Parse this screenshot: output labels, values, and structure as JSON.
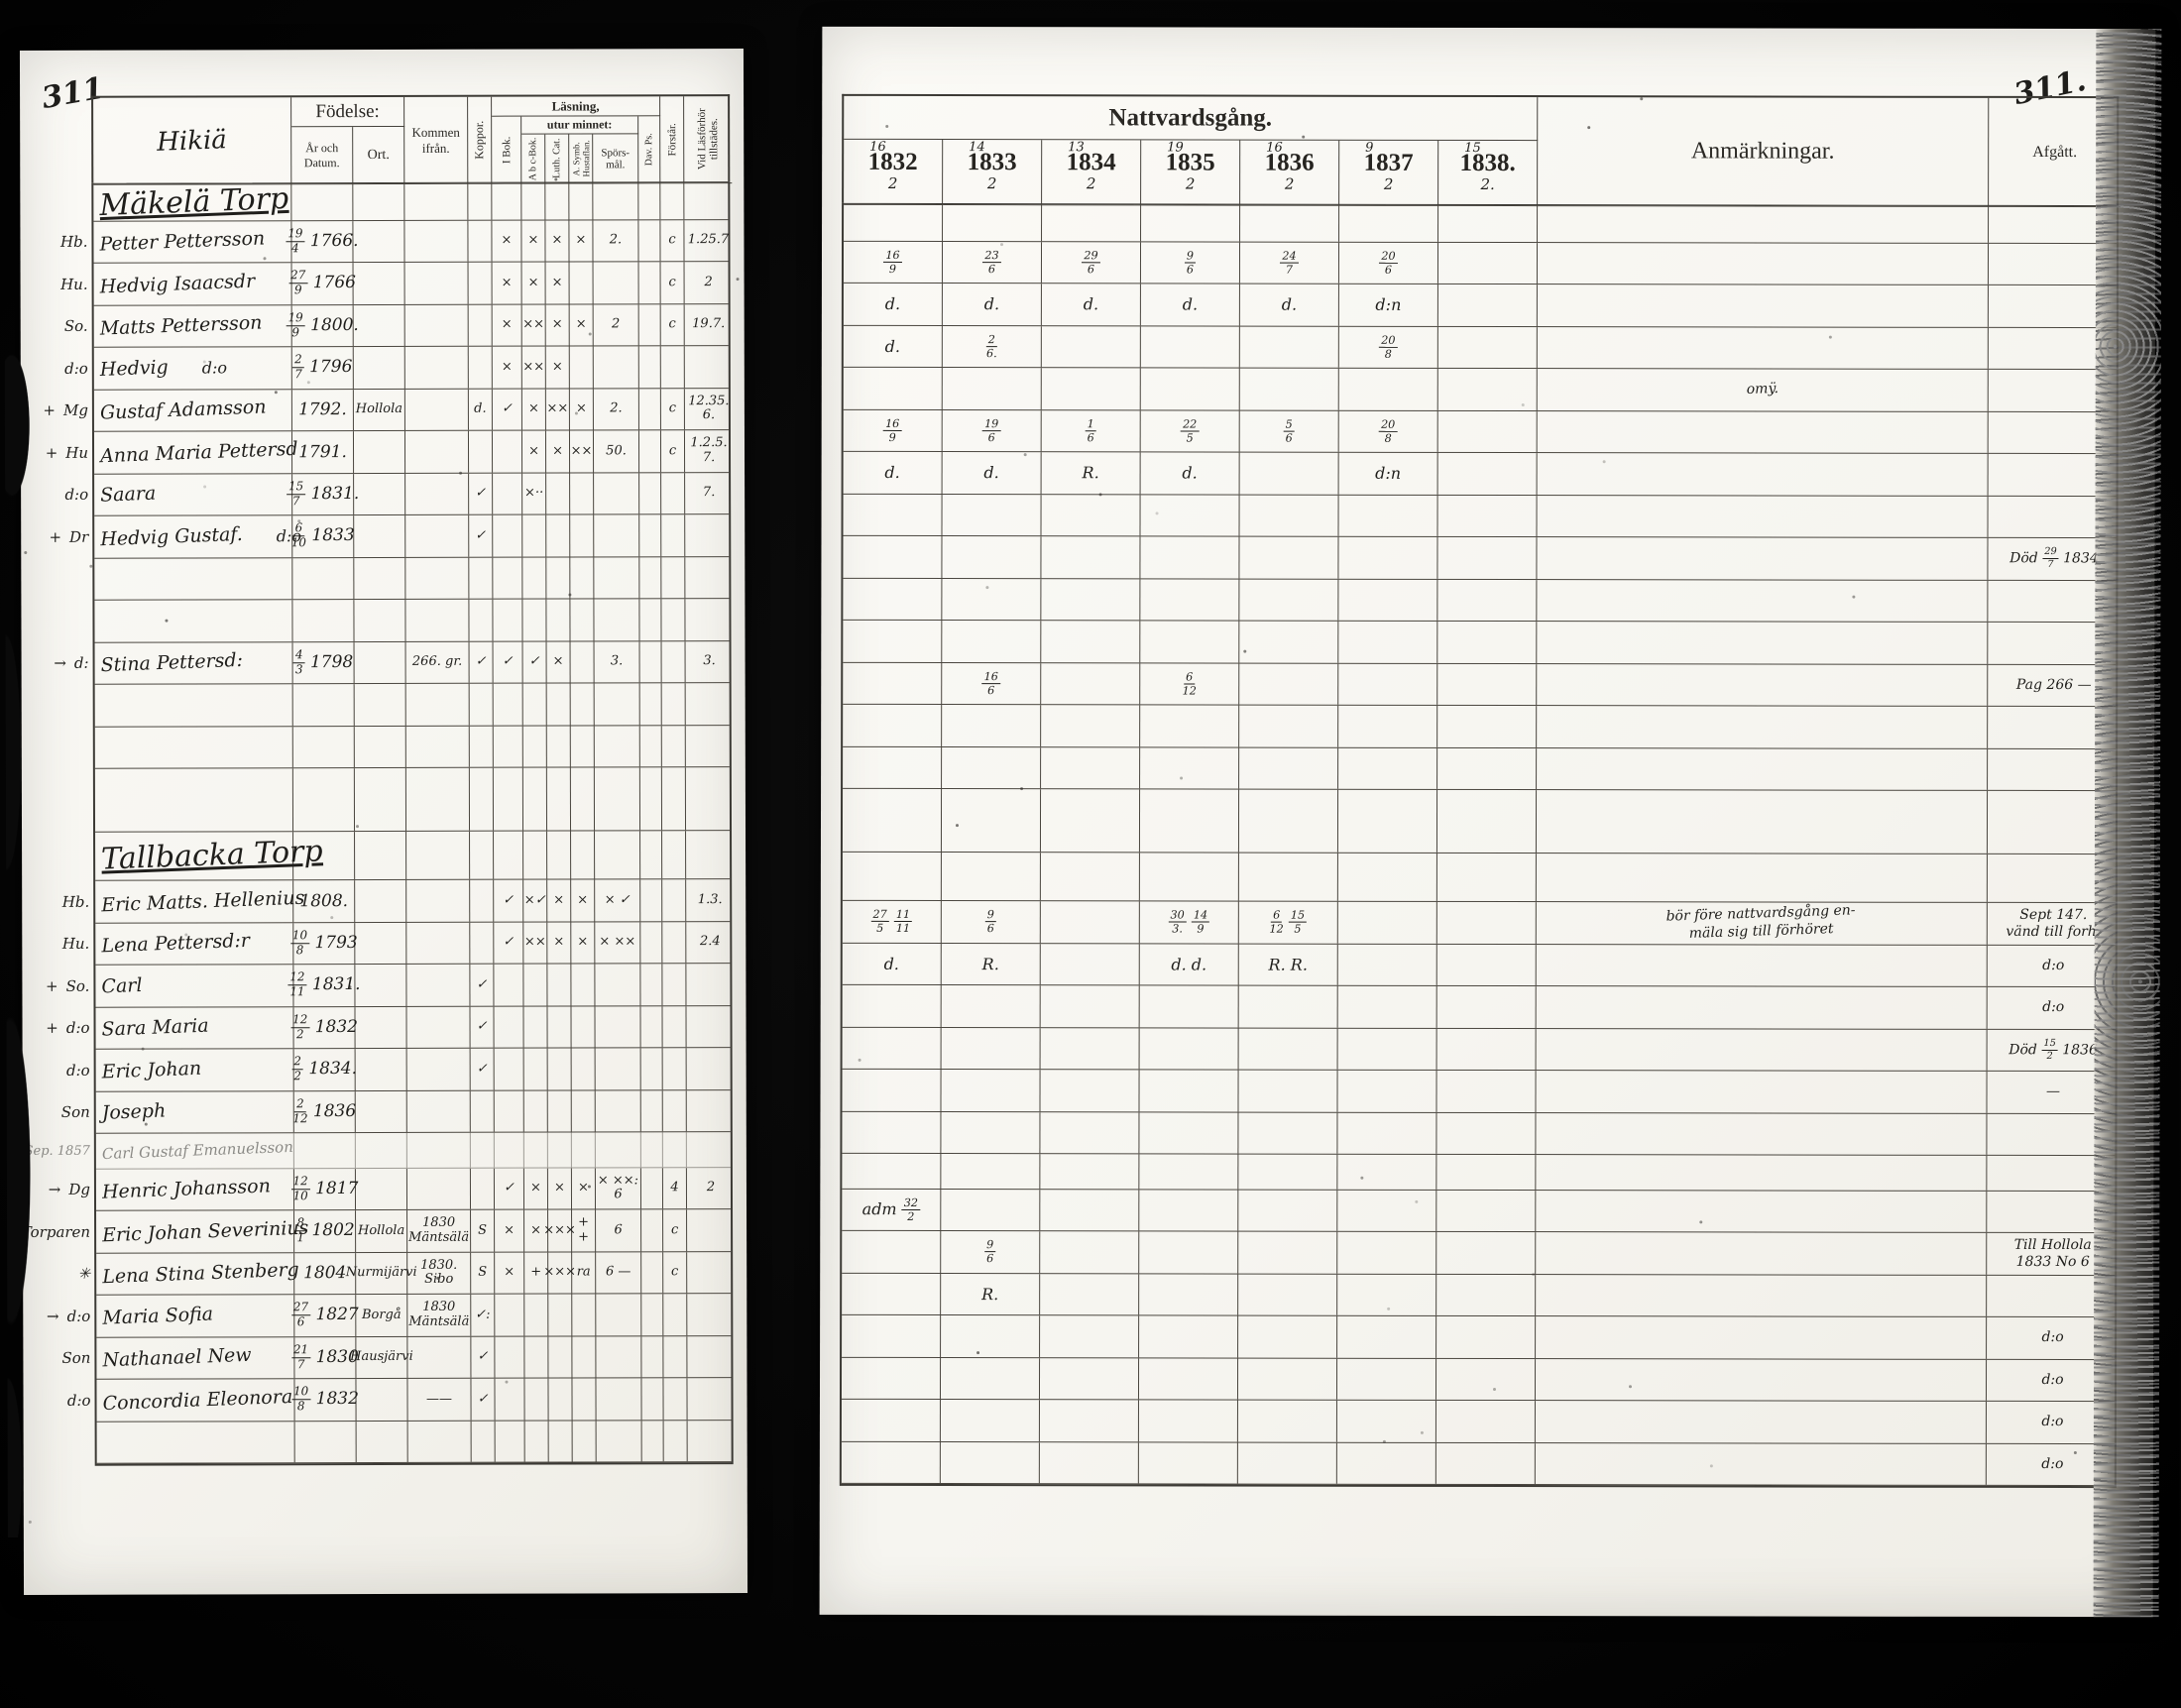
{
  "pages": {
    "left_page_number": "311",
    "right_page_number": "311."
  },
  "left_table": {
    "header": {
      "place_script": "Hikiä",
      "fodelse": "Födelse:",
      "ar_och_datum": "År och Datum.",
      "ort": "Ort.",
      "kommen_ifran": "Kommen ifrån.",
      "koppor": "Koppor.",
      "lasning": "Läsning,",
      "utur_minnet": "utur minnet:",
      "i_bok": "I Bok.",
      "abc_bok": "A b c-Bok.",
      "luth_cat": "Luth. Cat.",
      "symb_hustaflan": "A. Symb. Hustaflan.",
      "sporsmal": "Spörs-mål.",
      "dav_ps": "Dav. Ps.",
      "forstar": "Förstår.",
      "vid_lasforhor": "Vid Läsförhör tillstädes."
    },
    "rows": [
      {
        "type": "section",
        "name": "Mäkelä Torp"
      },
      {
        "ml": "Hb.",
        "name": "Petter Pettersson",
        "df": "19/4",
        "yr": "1766.",
        "ibok": "×",
        "abc": "×",
        "luth": "×",
        "symb": "×",
        "spors": "2.",
        "forstar": "c",
        "vid": "1.25.7"
      },
      {
        "ml": "Hu.",
        "name": "Hedvig Isaacsdr",
        "df": "27/9",
        "yr": "1766",
        "ibok": "×",
        "abc": "×",
        "luth": "×",
        "forstar": "c",
        "vid": "2"
      },
      {
        "ml": "So.",
        "name": "Matts Pettersson",
        "df": "19/9",
        "yr": "1800.",
        "ibok": "×",
        "abc": "××",
        "luth": "×",
        "symb": "×",
        "spors": "2",
        "forstar": "c",
        "vid": "19.7."
      },
      {
        "ml": "d:o",
        "name": "Hedvig",
        "ditto": "d:o",
        "df": "2/7",
        "yr": "1796",
        "ibok": "×",
        "abc": "××",
        "luth": "×"
      },
      {
        "m": "+",
        "ml": "Mg",
        "name": "Gustaf Adamsson",
        "yr": "1792.",
        "ort": "Hollola",
        "koppor": "d.",
        "ibok": "✓",
        "abc": "×",
        "luth": "××",
        "symb": "×",
        "spors": "2.",
        "forstar": "c",
        "vid": "12.35. 6."
      },
      {
        "m": "+",
        "ml": "Hu",
        "name": "Anna Maria Pettersd",
        "yr": "1791.",
        "abc": "×",
        "luth": "×",
        "symb": "××",
        "spors": "50.",
        "forstar": "c",
        "vid": "1.2.5. 7."
      },
      {
        "ml": "d:o",
        "name": "Saara",
        "df": "15/7",
        "yr": "1831.",
        "koppor": "✓",
        "abc": "×··",
        "vid": "7."
      },
      {
        "m": "+",
        "ml": "Dr",
        "name": "Hedvig Gustaf.",
        "ditto": "d:o",
        "df": "6/10",
        "yr": "1833",
        "koppor": "✓"
      },
      {
        "type": "blank"
      },
      {
        "type": "blank"
      },
      {
        "m": "→",
        "ml": "d:",
        "name": "Stina Pettersd:",
        "df": "4/3",
        "yr": "1798",
        "kommen": "266. gr.",
        "koppor": "✓",
        "ibok": "✓",
        "abc": "✓",
        "luth": "×",
        "spors": "3.",
        "vid": "3."
      },
      {
        "type": "blank"
      },
      {
        "type": "blank"
      },
      {
        "type": "blank"
      },
      {
        "type": "section",
        "name": "Tallbacka Torp"
      },
      {
        "ml": "Hb.",
        "name": "Eric Matts. Hellenius",
        "yr": "1808.",
        "ibok": "✓",
        "abc": "×✓",
        "luth": "×",
        "symb": "×",
        "spors": "× ✓",
        "vid": "1.3."
      },
      {
        "ml": "Hu.",
        "name": "Lena Pettersd:r",
        "df": "10/8",
        "yr": "1793",
        "ibok": "✓",
        "abc": "××",
        "luth": "×",
        "symb": "×",
        "spors": "× ××",
        "vid": "2.4"
      },
      {
        "m": "+",
        "ml": "So.",
        "name": "Carl",
        "df": "12/11",
        "yr": "1831.",
        "koppor": "✓"
      },
      {
        "m": "+",
        "ml": "d:o",
        "name": "Sara Maria",
        "df": "12/2",
        "yr": "1832",
        "koppor": "✓"
      },
      {
        "ml": "d:o",
        "name": "Eric Johan",
        "df": "2/2",
        "yr": "1834.",
        "koppor": "✓"
      },
      {
        "ml": "Son",
        "name": "Joseph",
        "df": "2/12",
        "yr": "1836"
      },
      {
        "type": "faint",
        "m": "Sep. 1857",
        "name": "Carl Gustaf Emanuelsson"
      },
      {
        "m": "→",
        "ml": "Dg",
        "name": "Henric Johansson",
        "df": "12/10",
        "yr": "1817",
        "ibok": "✓",
        "abc": "×",
        "luth": "×",
        "symb": "×",
        "spors": "× ××: 6",
        "forstar": "4",
        "vid": "2"
      },
      {
        "ml": "Torparen",
        "name": "Eric Johan Severinius",
        "df": "8/1",
        "yr": "1802",
        "ort": "Hollola",
        "kommen": "1830\nMäntsälä",
        "koppor": "S",
        "ibok": "×",
        "abc": "×",
        "luth": "×××",
        "symb": "+ +",
        "spors": "6",
        "forstar": "c"
      },
      {
        "m": "✳",
        "ml": "",
        "name": "Lena Stina Stenberg",
        "yr": "1804",
        "ort": "Nurmijärvi",
        "kommen": "1830.\nSibo",
        "koppor": "S",
        "ibok": "×",
        "abc": "+",
        "luth": "×××",
        "symb": "ra",
        "spors": "6 —",
        "forstar": "c"
      },
      {
        "m": "→",
        "ml": "d:o",
        "name": "Maria Sofia",
        "df": "27/6",
        "yr": "1827",
        "ort": "Borgå",
        "kommen": "1830\nMäntsälä",
        "koppor": "✓:"
      },
      {
        "ml": "Son",
        "name": "Nathanael New",
        "df": "21/7",
        "yr": "1830",
        "ort": "Hausjärvi",
        "koppor": "✓"
      },
      {
        "ml": "d:o",
        "name": "Concordia Eleonora",
        "df": "10/8",
        "yr": "1832",
        "kommen": "——",
        "koppor": "✓"
      },
      {
        "type": "blank"
      }
    ]
  },
  "right_table": {
    "title": "Nattvardsgång.",
    "anmarkningar": "Anmärkningar.",
    "afgatt": "Afgått.",
    "years": [
      {
        "sup": "16",
        "year": "1832",
        "sub": "2"
      },
      {
        "sup": "14",
        "year": "1833",
        "sub": "2"
      },
      {
        "sup": "13",
        "year": "1834",
        "sub": "2"
      },
      {
        "sup": "19",
        "year": "1835",
        "sub": "2"
      },
      {
        "sup": "16",
        "year": "1836",
        "sub": "2"
      },
      {
        "sup": "9",
        "year": "1837",
        "sub": "2"
      },
      {
        "sup": "15",
        "year": "1838.",
        "sub": "2."
      }
    ],
    "rows": [
      {},
      {
        "c": [
          "16/9",
          "23/6",
          "29/6",
          "9/6",
          "24/7",
          "20/6",
          ""
        ]
      },
      {
        "c": [
          "d.",
          "d.",
          "d.",
          "d.",
          "d.",
          "d:n",
          ""
        ]
      },
      {
        "c": [
          "d.",
          "2/6.",
          "",
          "",
          "",
          "20/8",
          ""
        ]
      },
      {
        "anm": "omÿ."
      },
      {
        "c": [
          "16/9",
          "19/6",
          "1/6",
          "22/5",
          "5/6",
          "20/8",
          ""
        ]
      },
      {
        "c": [
          "d.",
          "d.",
          "R.",
          "d.",
          "",
          "d:n",
          ""
        ]
      },
      {},
      {
        "afg": "Död 29/7 1834"
      },
      {},
      {},
      {
        "c": [
          "",
          "16/6",
          "",
          "6/12",
          "",
          "",
          ""
        ],
        "afg": "Pag 266 —"
      },
      {},
      {},
      {},
      {},
      {
        "c": [
          "27/5 11/11",
          "9/6",
          "",
          "30/3. 14/9",
          "6/12 15/5",
          "",
          ""
        ],
        "anm": "bör före nattvardsgång en-\nmäla sig till förhöret",
        "afg": "Sept 147.\nvänd till forh."
      },
      {
        "c": [
          "d.",
          "R.",
          "",
          "d. d.",
          "R. R.",
          "",
          ""
        ],
        "afg": "d:o"
      },
      {
        "afg": "d:o"
      },
      {
        "afg": "Död 15/2 1836"
      },
      {
        "afg": "—"
      },
      {},
      {},
      {
        "c": [
          "adm 32/2",
          "",
          "",
          "",
          "",
          "",
          ""
        ]
      },
      {
        "c": [
          "",
          "9/6",
          "",
          "",
          "",
          "",
          ""
        ],
        "afg": "Till Hollola\n1833 No 6"
      },
      {
        "c": [
          "",
          "R.",
          "",
          "",
          "",
          "",
          ""
        ]
      },
      {
        "afg": "d:o"
      },
      {
        "afg": "d:o"
      },
      {
        "afg": "d:o"
      },
      {
        "afg": "d:o"
      }
    ]
  }
}
